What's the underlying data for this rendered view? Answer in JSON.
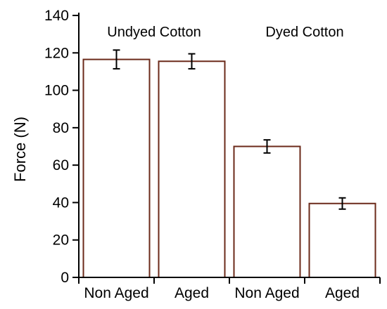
{
  "chart_data": {
    "type": "bar",
    "title": "",
    "xlabel": "",
    "ylabel": "Force (N)",
    "ylim": [
      0,
      140
    ],
    "yticks": [
      0,
      20,
      40,
      60,
      80,
      100,
      120,
      140
    ],
    "categories": [
      "Non Aged",
      "Aged",
      "Non Aged",
      "Aged"
    ],
    "values": [
      116.5,
      115.5,
      70,
      39.5
    ],
    "errors": [
      5,
      4,
      3.5,
      3
    ],
    "groups": [
      {
        "label": "Undyed Cotton",
        "categories": [
          0,
          1
        ]
      },
      {
        "label": "Dyed Cotton",
        "categories": [
          2,
          3
        ]
      }
    ],
    "colors": {
      "bar_edge": "#6b2a1a",
      "bar_fill": "#ffffff",
      "axis": "#000000"
    },
    "grid": false,
    "legend": "none"
  }
}
